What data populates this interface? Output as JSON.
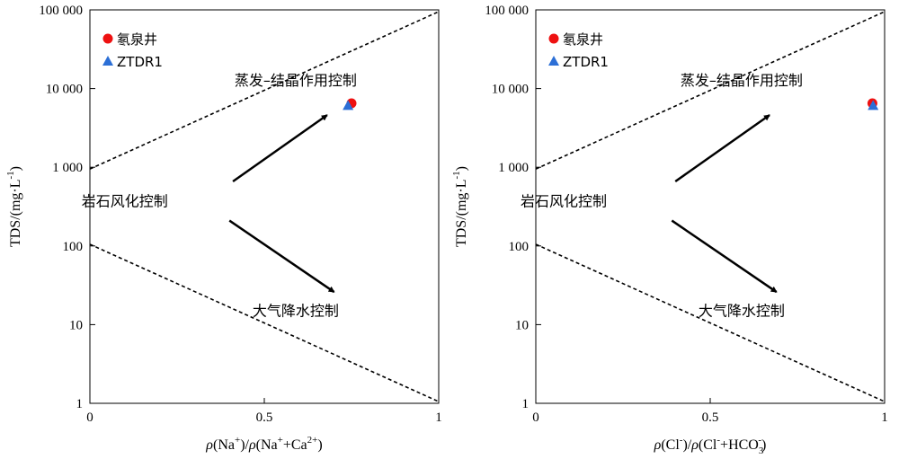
{
  "chart_data": [
    {
      "type": "scatter",
      "xlabel": {
        "pre": "ρ",
        "a": "(Na",
        "a_sup": "+",
        "b": ")/",
        "c": "ρ",
        "d": "(Na",
        "d_sup": "+",
        "e": "+Ca",
        "e_sup": "2+",
        "f": ")"
      },
      "ylabel": {
        "main": "TDS/(mg·L",
        "sup": "-1",
        "end": ")"
      },
      "xlim": [
        0,
        1
      ],
      "ylim": [
        1,
        100000
      ],
      "yscale": "log",
      "xticks": [
        {
          "value": 0,
          "label": "0"
        },
        {
          "value": 0.5,
          "label": "0.5"
        },
        {
          "value": 1,
          "label": "1"
        }
      ],
      "yticks": [
        {
          "value": 1,
          "label": "1"
        },
        {
          "value": 10,
          "label": "10"
        },
        {
          "value": 100,
          "label": "100"
        },
        {
          "value": 1000,
          "label": "1 000"
        },
        {
          "value": 10000,
          "label": "10 000"
        },
        {
          "value": 100000,
          "label": "100 000"
        }
      ],
      "series": [
        {
          "name": "氡泉井",
          "color": "#ee1111",
          "marker": "circle",
          "points": [
            {
              "x": 0.75,
              "y": 6500
            }
          ]
        },
        {
          "name": "ZTDR1",
          "color": "#2c6fd6",
          "marker": "triangle",
          "points": [
            {
              "x": 0.74,
              "y": 6100
            }
          ]
        }
      ],
      "lines": [
        {
          "style": "dashed",
          "from": {
            "x": 0,
            "y": 950
          },
          "to": {
            "x": 1,
            "y": 95000
          }
        },
        {
          "style": "dashed",
          "from": {
            "x": 0,
            "y": 105
          },
          "to": {
            "x": 1,
            "y": 1.05
          }
        }
      ],
      "arrows": [
        {
          "from": {
            "x": 0.41,
            "y": 660
          },
          "to": {
            "x": 0.68,
            "y": 4600
          }
        },
        {
          "from": {
            "x": 0.4,
            "y": 210
          },
          "to": {
            "x": 0.7,
            "y": 26
          }
        }
      ],
      "annotations": [
        {
          "text": "蒸发–结晶作用控制",
          "x": 0.59,
          "y": 11000
        },
        {
          "text": "岩石风化控制",
          "x": 0.1,
          "y": 320
        },
        {
          "text": "大气降水控制",
          "x": 0.59,
          "y": 13
        }
      ],
      "legend_position": "top-left"
    },
    {
      "type": "scatter",
      "xlabel": {
        "pre": "ρ",
        "a": "(Cl",
        "a_sup": "-",
        "b": ")/",
        "c": "ρ",
        "d": "(Cl",
        "d_sup": "-",
        "e": "+HCO",
        "e_sub": "3",
        "e_sup": "-",
        "f": ")"
      },
      "ylabel": {
        "main": "TDS/(mg·L",
        "sup": "-1",
        "end": ")"
      },
      "xlim": [
        0,
        1
      ],
      "ylim": [
        1,
        100000
      ],
      "yscale": "log",
      "xticks": [
        {
          "value": 0,
          "label": "0"
        },
        {
          "value": 0.5,
          "label": "0.5"
        },
        {
          "value": 1,
          "label": "1"
        }
      ],
      "yticks": [
        {
          "value": 1,
          "label": "1"
        },
        {
          "value": 10,
          "label": "10"
        },
        {
          "value": 100,
          "label": "100"
        },
        {
          "value": 1000,
          "label": "1 000"
        },
        {
          "value": 10000,
          "label": "10 000"
        },
        {
          "value": 100000,
          "label": "100 000"
        }
      ],
      "series": [
        {
          "name": "氡泉井",
          "color": "#ee1111",
          "marker": "circle",
          "points": [
            {
              "x": 0.965,
              "y": 6500
            }
          ]
        },
        {
          "name": "ZTDR1",
          "color": "#2c6fd6",
          "marker": "triangle",
          "points": [
            {
              "x": 0.967,
              "y": 6100
            }
          ]
        }
      ],
      "lines": [
        {
          "style": "dashed",
          "from": {
            "x": 0,
            "y": 950
          },
          "to": {
            "x": 1,
            "y": 95000
          }
        },
        {
          "style": "dashed",
          "from": {
            "x": 0,
            "y": 105
          },
          "to": {
            "x": 1,
            "y": 1.05
          }
        }
      ],
      "arrows": [
        {
          "from": {
            "x": 0.4,
            "y": 660
          },
          "to": {
            "x": 0.67,
            "y": 4600
          }
        },
        {
          "from": {
            "x": 0.39,
            "y": 210
          },
          "to": {
            "x": 0.69,
            "y": 26
          }
        }
      ],
      "annotations": [
        {
          "text": "蒸发–结晶作用控制",
          "x": 0.59,
          "y": 11000
        },
        {
          "text": "岩石风化控制",
          "x": 0.08,
          "y": 320
        },
        {
          "text": "大气降水控制",
          "x": 0.59,
          "y": 13
        }
      ],
      "legend_position": "top-left"
    }
  ]
}
